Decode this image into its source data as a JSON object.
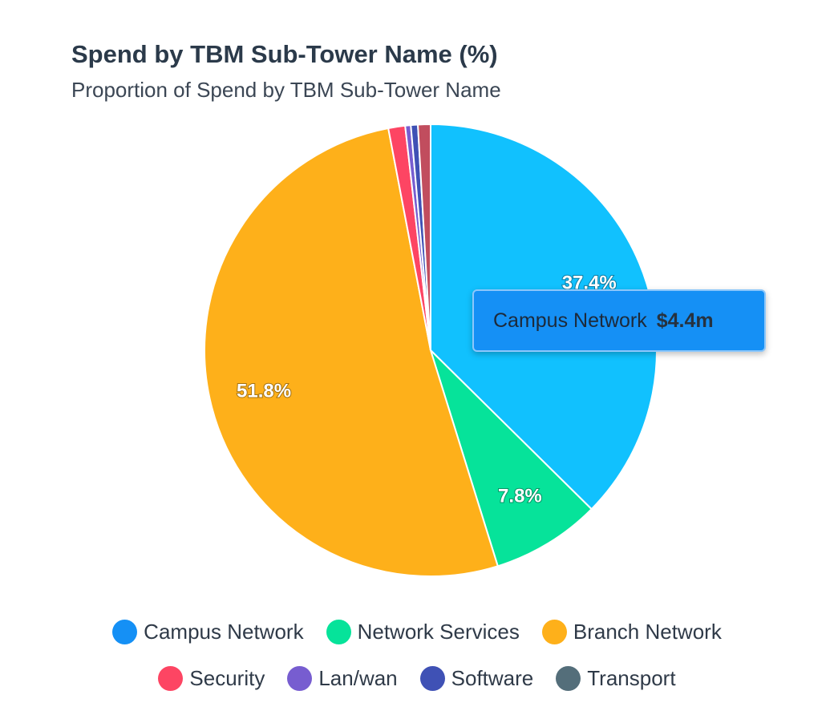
{
  "chart_data": {
    "type": "pie",
    "title": "Spend by TBM Sub-Tower Name (%)",
    "subtitle": "Proportion of Spend by TBM Sub-Tower Name",
    "slices": [
      {
        "name": "Campus Network",
        "value": 37.4,
        "color": "#11c1fe",
        "legend_color": "#1590f5",
        "label": "37.4%"
      },
      {
        "name": "Network Services",
        "value": 7.8,
        "color": "#06e39a",
        "legend_color": "#06e39a",
        "label": "7.8%"
      },
      {
        "name": "Branch Network",
        "value": 51.8,
        "color": "#feb01a",
        "legend_color": "#feb01a",
        "label": "51.8%"
      },
      {
        "name": "Security",
        "value": 1.2,
        "color": "#fd4563",
        "legend_color": "#fd4563",
        "label": ""
      },
      {
        "name": "Lan/wan",
        "value": 0.4,
        "color": "#775dd0",
        "legend_color": "#775dd0",
        "label": ""
      },
      {
        "name": "Software",
        "value": 0.5,
        "color": "#3f51b5",
        "legend_color": "#3f51b5",
        "label": ""
      },
      {
        "name": "Transport",
        "value": 0.9,
        "color": "#c14d5e",
        "legend_color": "#546e7a",
        "label": ""
      }
    ],
    "legend_position": "bottom"
  },
  "tooltip": {
    "series": "Campus Network",
    "value": "$4.4m"
  },
  "legend": {
    "row1": [
      "Campus Network",
      "Network Services",
      "Branch Network"
    ],
    "row2": [
      "Security",
      "Lan/wan",
      "Software",
      "Transport"
    ]
  }
}
